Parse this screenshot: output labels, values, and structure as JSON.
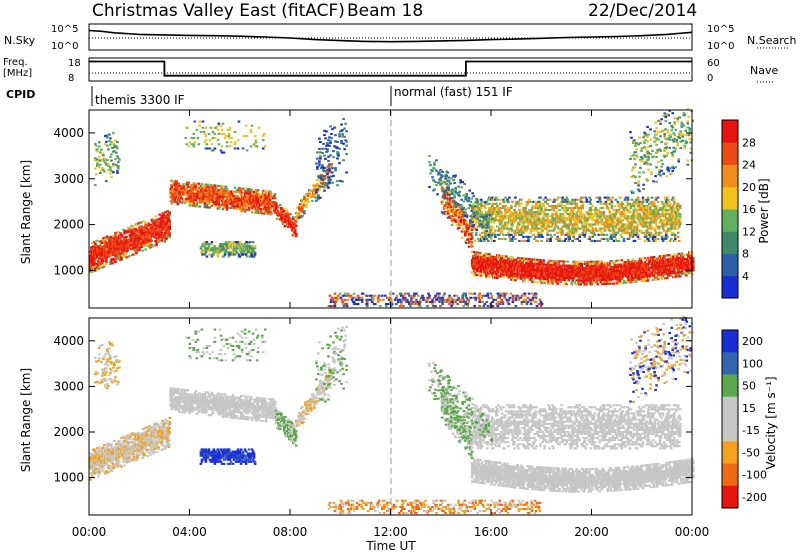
{
  "header": {
    "title": "Christmas Valley East (fitACF)",
    "beam": "Beam 18",
    "date": "22/Dec/2014"
  },
  "colors": {
    "power": [
      "#1a2ed8",
      "#2c5fa8",
      "#3f8a6a",
      "#62b05e",
      "#f2c21f",
      "#f08c1a",
      "#ec4a14",
      "#e8140f"
    ],
    "velocity": [
      "#1a2ed8",
      "#3563b0",
      "#5ba84a",
      "#c6c6c6",
      "#c6c6c6",
      "#f2a21f",
      "#f06a14",
      "#e8140f"
    ],
    "dotted": "#000000"
  },
  "chart_data": [
    {
      "type": "line",
      "panel": "noise",
      "ylabel_left": "N.Sky",
      "ylabel_right": "N.Search",
      "yticks_left": [
        "10^5",
        "10^0"
      ],
      "yticks_right": [
        "10^5",
        "10^0"
      ],
      "series": [
        {
          "x": [
            0,
            0.5,
            1,
            2,
            3,
            4,
            5,
            6,
            7,
            8,
            9,
            10,
            11,
            12,
            13,
            14,
            15,
            16,
            17,
            18,
            19,
            20,
            21,
            22,
            23,
            24
          ],
          "values": [
            0.75,
            0.72,
            0.66,
            0.6,
            0.58,
            0.56,
            0.55,
            0.53,
            0.5,
            0.46,
            0.4,
            0.36,
            0.33,
            0.32,
            0.33,
            0.35,
            0.37,
            0.4,
            0.42,
            0.45,
            0.48,
            0.5,
            0.52,
            0.55,
            0.6,
            0.68
          ]
        }
      ]
    },
    {
      "type": "line",
      "panel": "frequency",
      "ylabel_left": "Freq. [MHz]",
      "ylabel_right": "Nave",
      "yticks_left": [
        18,
        8
      ],
      "yticks_right": [
        60,
        0
      ],
      "series": [
        {
          "x": [
            0,
            3.0,
            3.0,
            15.0,
            15.0,
            24
          ],
          "values": [
            16.5,
            16.5,
            10.3,
            10.3,
            16.5,
            16.5
          ]
        }
      ]
    },
    {
      "type": "table",
      "panel": "cpid",
      "label": "CPID",
      "segments": [
        {
          "start": 0,
          "end": 12.0,
          "text": "themis 3300 IF"
        },
        {
          "start": 12.0,
          "end": 24,
          "text": "normal (fast) 151 IF"
        }
      ]
    },
    {
      "type": "heatmap",
      "panel": "power",
      "ylabel": "Slant Range [km]",
      "yticks": [
        1000,
        2000,
        3000,
        4000
      ],
      "ylim": [
        180,
        4500
      ],
      "xlim": [
        0,
        24
      ],
      "colorbar_label": "Power [dB]",
      "colorbar_ticks": [
        4,
        8,
        12,
        16,
        20,
        24,
        28
      ],
      "clim": [
        0,
        32
      ]
    },
    {
      "type": "heatmap",
      "panel": "velocity",
      "ylabel": "Slant Range [km]",
      "yticks": [
        1000,
        2000,
        3000,
        4000
      ],
      "ylim": [
        180,
        4500
      ],
      "xlim": [
        0,
        24
      ],
      "xticks": [
        "00:00",
        "04:00",
        "08:00",
        "12:00",
        "16:00",
        "20:00",
        "00:00"
      ],
      "xlabel": "Time UT",
      "colorbar_label": "Velocity [m s⁻¹]",
      "colorbar_ticks": [
        "200",
        "100",
        "50",
        "15",
        "-15",
        "-50",
        "-100",
        "-200"
      ]
    }
  ]
}
